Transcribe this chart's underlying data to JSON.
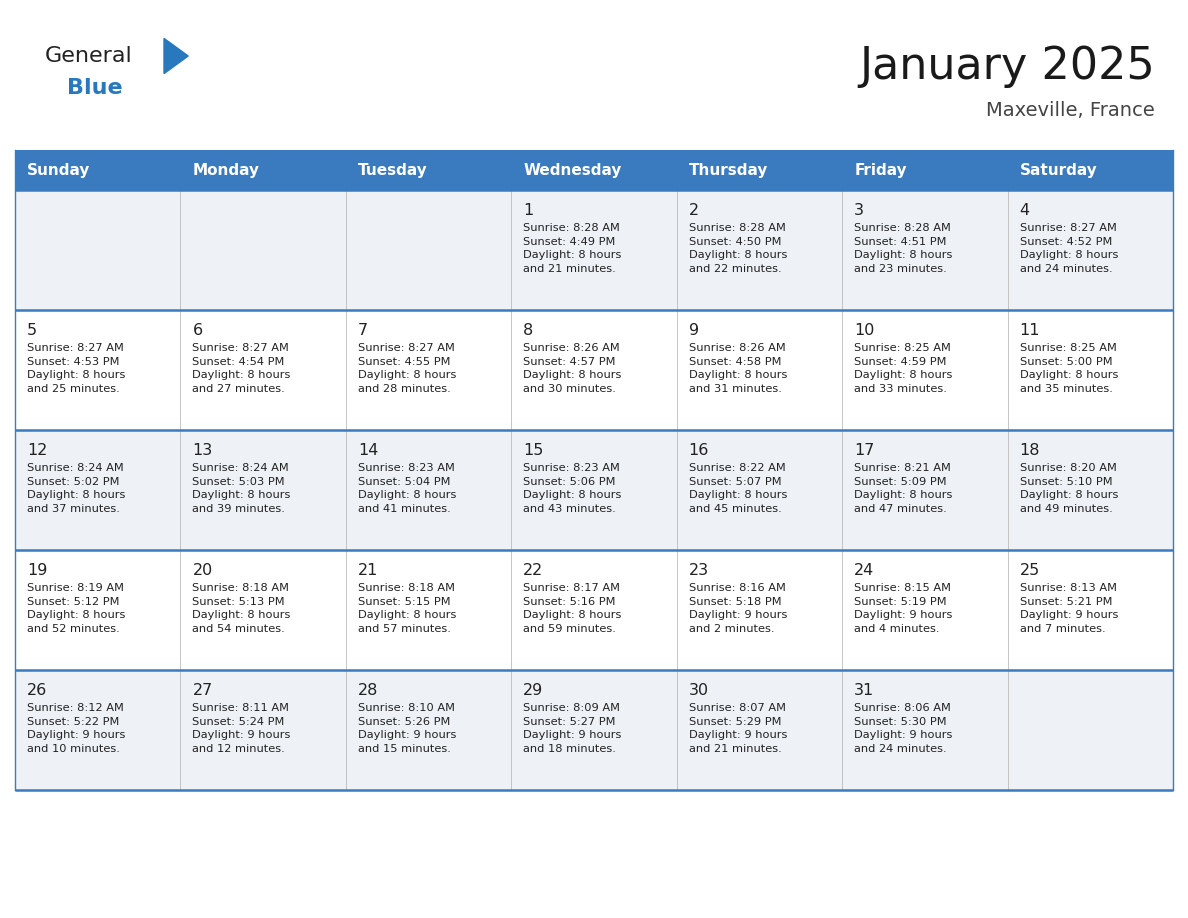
{
  "title": "January 2025",
  "subtitle": "Maxeville, France",
  "header_bg_color": "#3a7bbf",
  "header_text_color": "#ffffff",
  "day_names": [
    "Sunday",
    "Monday",
    "Tuesday",
    "Wednesday",
    "Thursday",
    "Friday",
    "Saturday"
  ],
  "row_bg_even": "#eef2f7",
  "row_bg_odd": "#ffffff",
  "cell_border_color": "#3a7bbf",
  "day_num_color": "#222222",
  "info_text_color": "#222222",
  "logo_general_color": "#222222",
  "logo_blue_color": "#2878be",
  "calendar": [
    [
      {
        "day": "",
        "info": ""
      },
      {
        "day": "",
        "info": ""
      },
      {
        "day": "",
        "info": ""
      },
      {
        "day": "1",
        "info": "Sunrise: 8:28 AM\nSunset: 4:49 PM\nDaylight: 8 hours\nand 21 minutes."
      },
      {
        "day": "2",
        "info": "Sunrise: 8:28 AM\nSunset: 4:50 PM\nDaylight: 8 hours\nand 22 minutes."
      },
      {
        "day": "3",
        "info": "Sunrise: 8:28 AM\nSunset: 4:51 PM\nDaylight: 8 hours\nand 23 minutes."
      },
      {
        "day": "4",
        "info": "Sunrise: 8:27 AM\nSunset: 4:52 PM\nDaylight: 8 hours\nand 24 minutes."
      }
    ],
    [
      {
        "day": "5",
        "info": "Sunrise: 8:27 AM\nSunset: 4:53 PM\nDaylight: 8 hours\nand 25 minutes."
      },
      {
        "day": "6",
        "info": "Sunrise: 8:27 AM\nSunset: 4:54 PM\nDaylight: 8 hours\nand 27 minutes."
      },
      {
        "day": "7",
        "info": "Sunrise: 8:27 AM\nSunset: 4:55 PM\nDaylight: 8 hours\nand 28 minutes."
      },
      {
        "day": "8",
        "info": "Sunrise: 8:26 AM\nSunset: 4:57 PM\nDaylight: 8 hours\nand 30 minutes."
      },
      {
        "day": "9",
        "info": "Sunrise: 8:26 AM\nSunset: 4:58 PM\nDaylight: 8 hours\nand 31 minutes."
      },
      {
        "day": "10",
        "info": "Sunrise: 8:25 AM\nSunset: 4:59 PM\nDaylight: 8 hours\nand 33 minutes."
      },
      {
        "day": "11",
        "info": "Sunrise: 8:25 AM\nSunset: 5:00 PM\nDaylight: 8 hours\nand 35 minutes."
      }
    ],
    [
      {
        "day": "12",
        "info": "Sunrise: 8:24 AM\nSunset: 5:02 PM\nDaylight: 8 hours\nand 37 minutes."
      },
      {
        "day": "13",
        "info": "Sunrise: 8:24 AM\nSunset: 5:03 PM\nDaylight: 8 hours\nand 39 minutes."
      },
      {
        "day": "14",
        "info": "Sunrise: 8:23 AM\nSunset: 5:04 PM\nDaylight: 8 hours\nand 41 minutes."
      },
      {
        "day": "15",
        "info": "Sunrise: 8:23 AM\nSunset: 5:06 PM\nDaylight: 8 hours\nand 43 minutes."
      },
      {
        "day": "16",
        "info": "Sunrise: 8:22 AM\nSunset: 5:07 PM\nDaylight: 8 hours\nand 45 minutes."
      },
      {
        "day": "17",
        "info": "Sunrise: 8:21 AM\nSunset: 5:09 PM\nDaylight: 8 hours\nand 47 minutes."
      },
      {
        "day": "18",
        "info": "Sunrise: 8:20 AM\nSunset: 5:10 PM\nDaylight: 8 hours\nand 49 minutes."
      }
    ],
    [
      {
        "day": "19",
        "info": "Sunrise: 8:19 AM\nSunset: 5:12 PM\nDaylight: 8 hours\nand 52 minutes."
      },
      {
        "day": "20",
        "info": "Sunrise: 8:18 AM\nSunset: 5:13 PM\nDaylight: 8 hours\nand 54 minutes."
      },
      {
        "day": "21",
        "info": "Sunrise: 8:18 AM\nSunset: 5:15 PM\nDaylight: 8 hours\nand 57 minutes."
      },
      {
        "day": "22",
        "info": "Sunrise: 8:17 AM\nSunset: 5:16 PM\nDaylight: 8 hours\nand 59 minutes."
      },
      {
        "day": "23",
        "info": "Sunrise: 8:16 AM\nSunset: 5:18 PM\nDaylight: 9 hours\nand 2 minutes."
      },
      {
        "day": "24",
        "info": "Sunrise: 8:15 AM\nSunset: 5:19 PM\nDaylight: 9 hours\nand 4 minutes."
      },
      {
        "day": "25",
        "info": "Sunrise: 8:13 AM\nSunset: 5:21 PM\nDaylight: 9 hours\nand 7 minutes."
      }
    ],
    [
      {
        "day": "26",
        "info": "Sunrise: 8:12 AM\nSunset: 5:22 PM\nDaylight: 9 hours\nand 10 minutes."
      },
      {
        "day": "27",
        "info": "Sunrise: 8:11 AM\nSunset: 5:24 PM\nDaylight: 9 hours\nand 12 minutes."
      },
      {
        "day": "28",
        "info": "Sunrise: 8:10 AM\nSunset: 5:26 PM\nDaylight: 9 hours\nand 15 minutes."
      },
      {
        "day": "29",
        "info": "Sunrise: 8:09 AM\nSunset: 5:27 PM\nDaylight: 9 hours\nand 18 minutes."
      },
      {
        "day": "30",
        "info": "Sunrise: 8:07 AM\nSunset: 5:29 PM\nDaylight: 9 hours\nand 21 minutes."
      },
      {
        "day": "31",
        "info": "Sunrise: 8:06 AM\nSunset: 5:30 PM\nDaylight: 9 hours\nand 24 minutes."
      },
      {
        "day": "",
        "info": ""
      }
    ]
  ]
}
